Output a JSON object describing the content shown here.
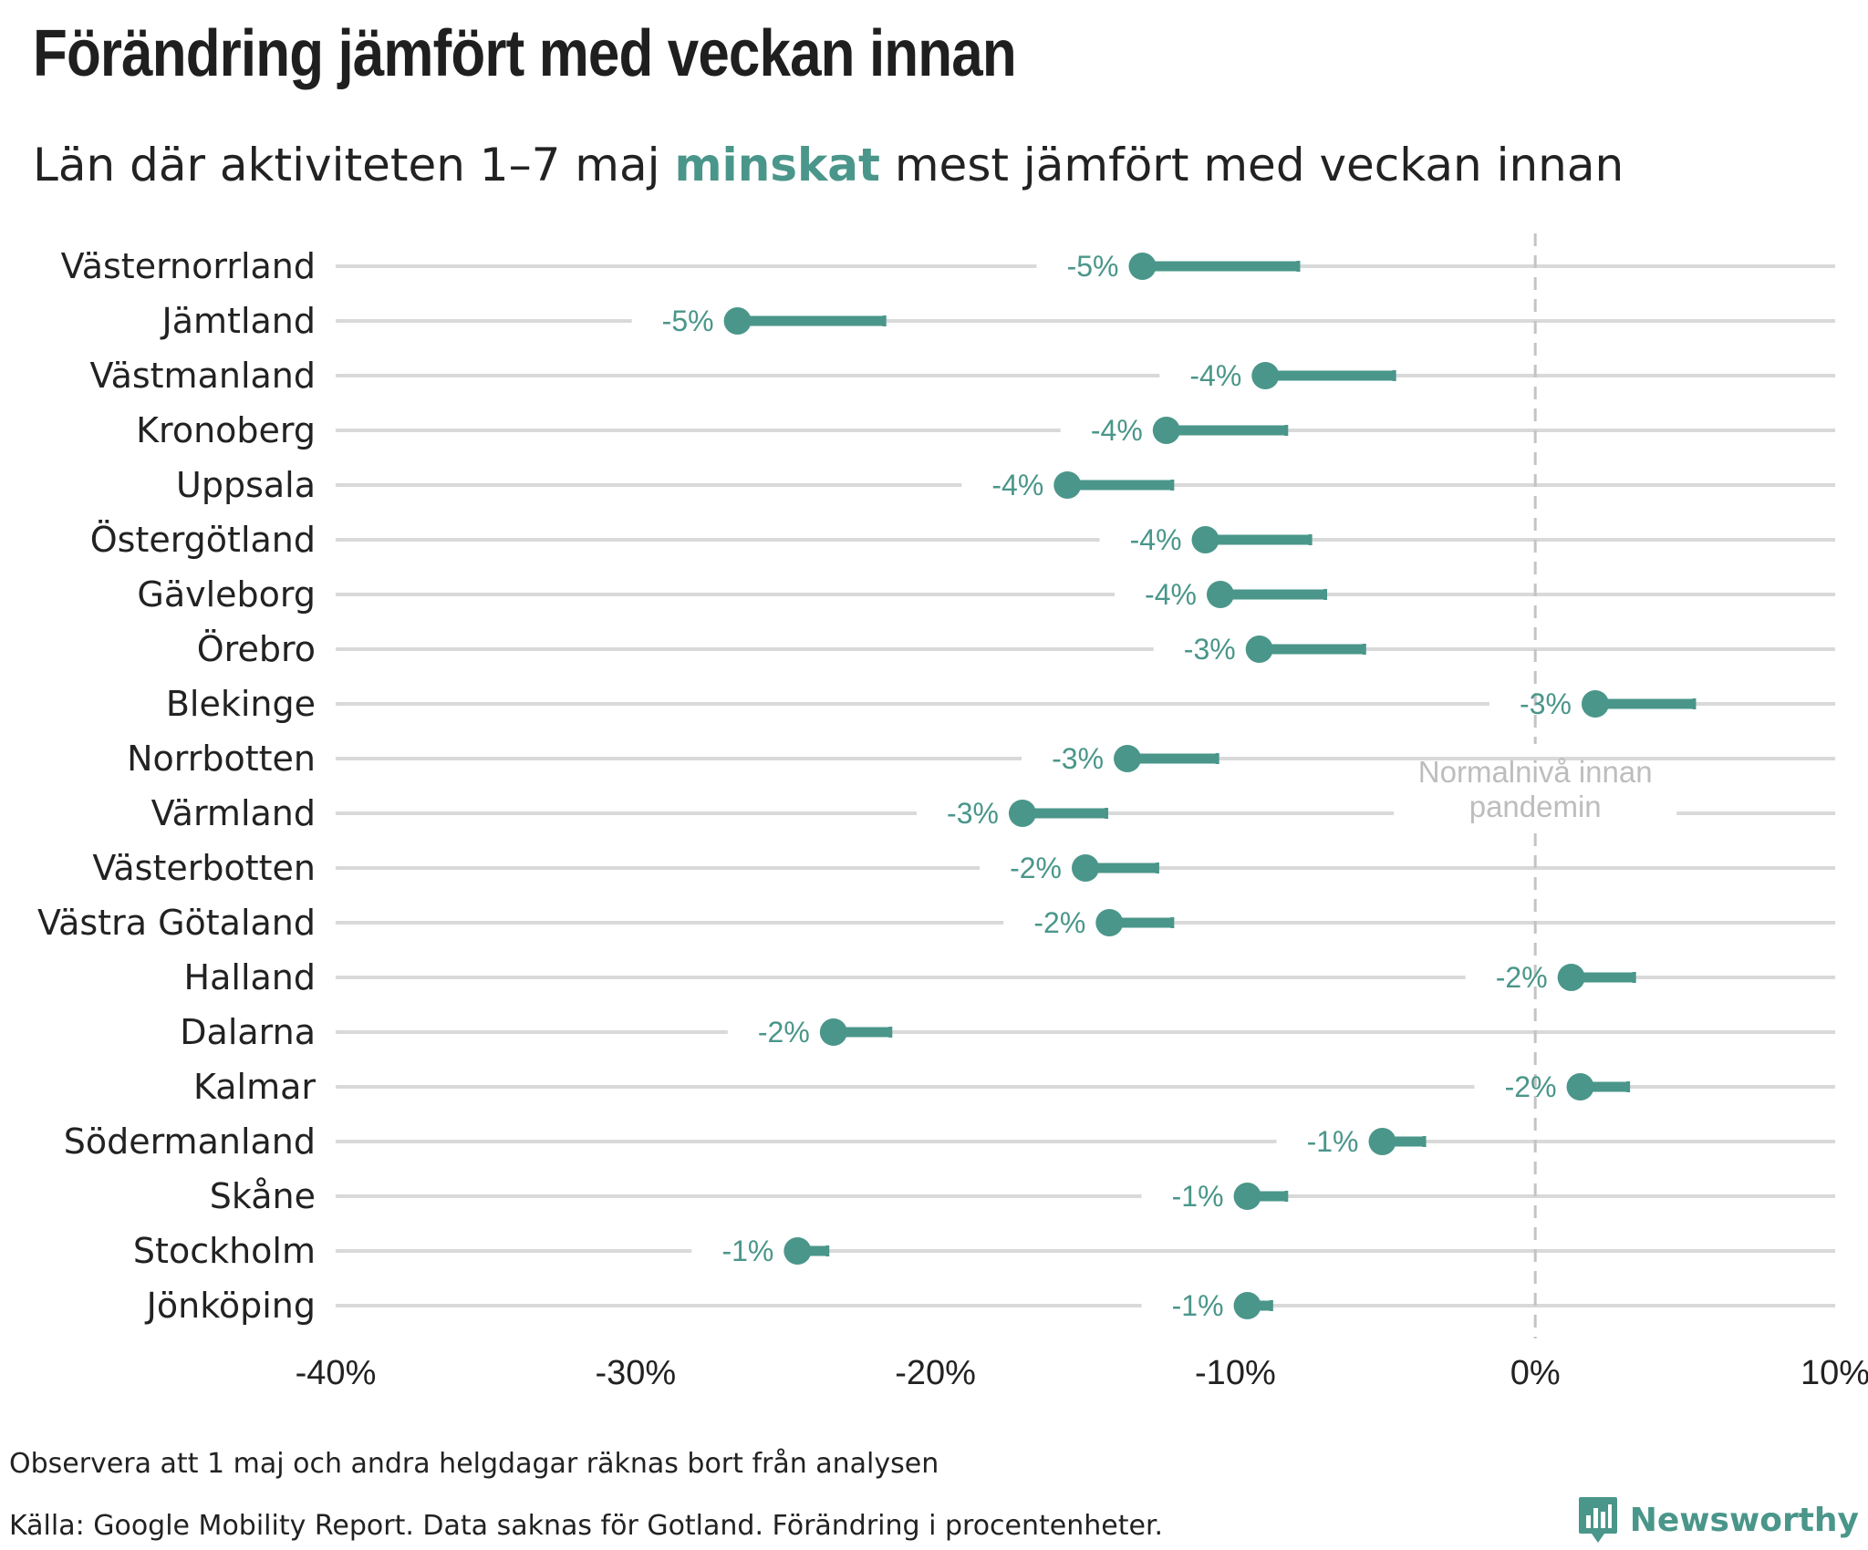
{
  "title": "Förändring jämfört med veckan innan",
  "subtitle": {
    "before": "Län där aktiviteten 1–7 maj ",
    "highlight": "minskat",
    "after": " mest jämfört med veckan innan"
  },
  "reference_label": [
    "Normalnivå innan",
    "pandemin"
  ],
  "notes": {
    "note1": "Observera att 1 maj och andra helgdagar räknas bort från analysen",
    "note2": "Källa: Google Mobility Report. Data saknas för Gotland. Förändring i procentenheter."
  },
  "brand": {
    "name": "Newsworthy",
    "icon": "newsworthy-logo-icon"
  },
  "colors": {
    "accent": "#4a968a",
    "grid": "#d9d9d9",
    "reference": "#c4c4c4",
    "text": "#222222"
  },
  "chart_data": {
    "type": "dumbbell",
    "xlim": [
      -40,
      10
    ],
    "x_ticks": [
      -40,
      -30,
      -20,
      -10,
      0,
      10
    ],
    "x_tick_labels": [
      "-40%",
      "-30%",
      "-20%",
      "-10%",
      "0%",
      "10%"
    ],
    "reference_x": 0,
    "rows": [
      {
        "region": "Västernorrland",
        "current": -13.1,
        "previous": -7.9,
        "change_label": "-5%"
      },
      {
        "region": "Jämtland",
        "current": -26.6,
        "previous": -21.7,
        "change_label": "-5%"
      },
      {
        "region": "Västmanland",
        "current": -9.0,
        "previous": -4.7,
        "change_label": "-4%"
      },
      {
        "region": "Kronoberg",
        "current": -12.3,
        "previous": -8.3,
        "change_label": "-4%"
      },
      {
        "region": "Uppsala",
        "current": -15.6,
        "previous": -12.1,
        "change_label": "-4%"
      },
      {
        "region": "Östergötland",
        "current": -11.0,
        "previous": -7.5,
        "change_label": "-4%"
      },
      {
        "region": "Gävleborg",
        "current": -10.5,
        "previous": -7.0,
        "change_label": "-4%"
      },
      {
        "region": "Örebro",
        "current": -9.2,
        "previous": -5.7,
        "change_label": "-3%"
      },
      {
        "region": "Blekinge",
        "current": 2.0,
        "previous": 5.3,
        "change_label": "-3%"
      },
      {
        "region": "Norrbotten",
        "current": -13.6,
        "previous": -10.6,
        "change_label": "-3%"
      },
      {
        "region": "Värmland",
        "current": -17.1,
        "previous": -14.3,
        "change_label": "-3%"
      },
      {
        "region": "Västerbotten",
        "current": -15.0,
        "previous": -12.6,
        "change_label": "-2%"
      },
      {
        "region": "Västra Götaland",
        "current": -14.2,
        "previous": -12.1,
        "change_label": "-2%"
      },
      {
        "region": "Halland",
        "current": 1.2,
        "previous": 3.3,
        "change_label": "-2%"
      },
      {
        "region": "Dalarna",
        "current": -23.4,
        "previous": -21.5,
        "change_label": "-2%"
      },
      {
        "region": "Kalmar",
        "current": 1.5,
        "previous": 3.1,
        "change_label": "-2%"
      },
      {
        "region": "Södermanland",
        "current": -5.1,
        "previous": -3.7,
        "change_label": "-1%"
      },
      {
        "region": "Skåne",
        "current": -9.6,
        "previous": -8.3,
        "change_label": "-1%"
      },
      {
        "region": "Stockholm",
        "current": -24.6,
        "previous": -23.6,
        "change_label": "-1%"
      },
      {
        "region": "Jönköping",
        "current": -9.6,
        "previous": -8.8,
        "change_label": "-1%"
      }
    ]
  }
}
